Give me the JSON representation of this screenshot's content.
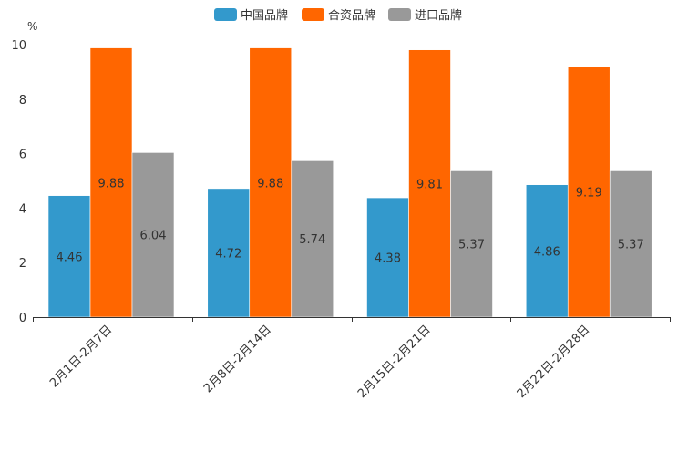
{
  "chart_data": {
    "type": "bar",
    "y_unit": "%",
    "ylim": [
      0,
      10
    ],
    "y_ticks": [
      0,
      2,
      4,
      6,
      8,
      10
    ],
    "categories": [
      "2月1日-2月7日",
      "2月8日-2月14日",
      "2月15日-2月21日",
      "2月22日-2月28日"
    ],
    "series": [
      {
        "name": "中国品牌",
        "color": "#3399CC",
        "values": [
          4.46,
          4.72,
          4.38,
          4.86
        ]
      },
      {
        "name": "合资品牌",
        "color": "#FF6600",
        "values": [
          9.88,
          9.88,
          9.81,
          9.19
        ]
      },
      {
        "name": "进口品牌",
        "color": "#999999",
        "values": [
          6.04,
          5.74,
          5.37,
          5.37
        ]
      }
    ],
    "legend_position": "top-center",
    "grid": false
  }
}
